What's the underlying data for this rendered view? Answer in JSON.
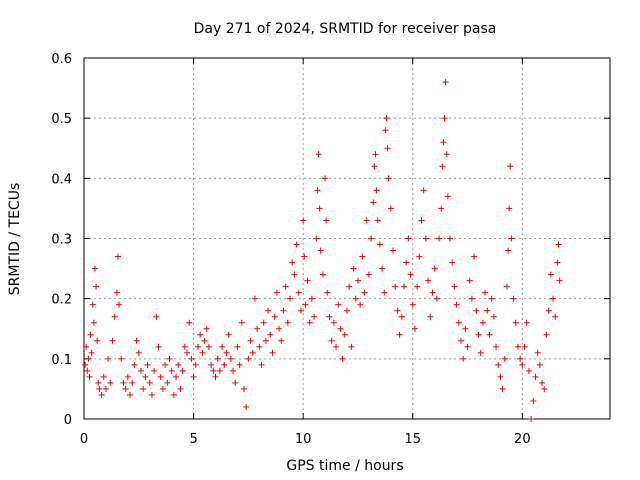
{
  "chart_data": {
    "type": "scatter",
    "title": "Day 271 of 2024, SRMTID for receiver pasa",
    "xlabel": "GPS time / hours",
    "ylabel": "SRMTID / TECUs",
    "xlim": [
      0,
      24
    ],
    "ylim": [
      0,
      0.6
    ],
    "xticks": [
      0,
      5,
      10,
      15,
      20
    ],
    "xtick_labels": [
      "0",
      "5",
      "10",
      "15",
      "20"
    ],
    "yticks": [
      0,
      0.1,
      0.2,
      0.3,
      0.4,
      0.5,
      0.6
    ],
    "ytick_labels": [
      "0",
      "0.1",
      "0.2",
      "0.3",
      "0.4",
      "0.5",
      "0.6"
    ],
    "grid": true,
    "marker": "+",
    "series_color": "#ff0000",
    "series": [
      {
        "name": "pasa",
        "points": [
          [
            0.05,
            0.09
          ],
          [
            0.1,
            0.12
          ],
          [
            0.15,
            0.08
          ],
          [
            0.2,
            0.1
          ],
          [
            0.25,
            0.07
          ],
          [
            0.3,
            0.14
          ],
          [
            0.35,
            0.11
          ],
          [
            0.4,
            0.19
          ],
          [
            0.45,
            0.16
          ],
          [
            0.5,
            0.25
          ],
          [
            0.55,
            0.22
          ],
          [
            0.6,
            0.13
          ],
          [
            0.65,
            0.06
          ],
          [
            0.7,
            0.05
          ],
          [
            0.8,
            0.04
          ],
          [
            0.9,
            0.07
          ],
          [
            1.0,
            0.05
          ],
          [
            1.1,
            0.1
          ],
          [
            1.2,
            0.06
          ],
          [
            1.3,
            0.13
          ],
          [
            1.4,
            0.17
          ],
          [
            1.5,
            0.21
          ],
          [
            1.55,
            0.27
          ],
          [
            1.6,
            0.19
          ],
          [
            1.7,
            0.1
          ],
          [
            1.8,
            0.06
          ],
          [
            1.9,
            0.05
          ],
          [
            2.0,
            0.07
          ],
          [
            2.1,
            0.04
          ],
          [
            2.2,
            0.06
          ],
          [
            2.3,
            0.09
          ],
          [
            2.4,
            0.13
          ],
          [
            2.5,
            0.11
          ],
          [
            2.6,
            0.08
          ],
          [
            2.7,
            0.05
          ],
          [
            2.8,
            0.07
          ],
          [
            2.9,
            0.09
          ],
          [
            3.0,
            0.06
          ],
          [
            3.1,
            0.04
          ],
          [
            3.2,
            0.08
          ],
          [
            3.3,
            0.17
          ],
          [
            3.4,
            0.12
          ],
          [
            3.5,
            0.07
          ],
          [
            3.6,
            0.05
          ],
          [
            3.7,
            0.09
          ],
          [
            3.8,
            0.06
          ],
          [
            3.9,
            0.1
          ],
          [
            4.0,
            0.08
          ],
          [
            4.1,
            0.04
          ],
          [
            4.2,
            0.07
          ],
          [
            4.3,
            0.09
          ],
          [
            4.4,
            0.05
          ],
          [
            4.5,
            0.08
          ],
          [
            4.6,
            0.12
          ],
          [
            4.7,
            0.11
          ],
          [
            4.8,
            0.16
          ],
          [
            4.9,
            0.1
          ],
          [
            5.0,
            0.07
          ],
          [
            5.1,
            0.09
          ],
          [
            5.2,
            0.12
          ],
          [
            5.3,
            0.14
          ],
          [
            5.4,
            0.11
          ],
          [
            5.5,
            0.13
          ],
          [
            5.6,
            0.15
          ],
          [
            5.7,
            0.12
          ],
          [
            5.8,
            0.09
          ],
          [
            5.9,
            0.08
          ],
          [
            6.0,
            0.07
          ],
          [
            6.1,
            0.1
          ],
          [
            6.2,
            0.08
          ],
          [
            6.3,
            0.12
          ],
          [
            6.4,
            0.09
          ],
          [
            6.5,
            0.11
          ],
          [
            6.6,
            0.14
          ],
          [
            6.7,
            0.1
          ],
          [
            6.8,
            0.08
          ],
          [
            6.9,
            0.06
          ],
          [
            7.0,
            0.12
          ],
          [
            7.1,
            0.09
          ],
          [
            7.2,
            0.16
          ],
          [
            7.3,
            0.05
          ],
          [
            7.4,
            0.02
          ],
          [
            7.5,
            0.1
          ],
          [
            7.6,
            0.13
          ],
          [
            7.7,
            0.11
          ],
          [
            7.8,
            0.2
          ],
          [
            7.9,
            0.15
          ],
          [
            8.0,
            0.12
          ],
          [
            8.1,
            0.09
          ],
          [
            8.2,
            0.16
          ],
          [
            8.3,
            0.13
          ],
          [
            8.4,
            0.18
          ],
          [
            8.5,
            0.14
          ],
          [
            8.6,
            0.11
          ],
          [
            8.7,
            0.17
          ],
          [
            8.8,
            0.21
          ],
          [
            8.9,
            0.15
          ],
          [
            9.0,
            0.13
          ],
          [
            9.1,
            0.18
          ],
          [
            9.2,
            0.22
          ],
          [
            9.3,
            0.16
          ],
          [
            9.4,
            0.2
          ],
          [
            9.5,
            0.26
          ],
          [
            9.6,
            0.24
          ],
          [
            9.7,
            0.29
          ],
          [
            9.8,
            0.21
          ],
          [
            9.9,
            0.18
          ],
          [
            10.0,
            0.33
          ],
          [
            10.05,
            0.27
          ],
          [
            10.1,
            0.19
          ],
          [
            10.2,
            0.23
          ],
          [
            10.3,
            0.16
          ],
          [
            10.4,
            0.2
          ],
          [
            10.5,
            0.17
          ],
          [
            10.6,
            0.3
          ],
          [
            10.65,
            0.38
          ],
          [
            10.7,
            0.44
          ],
          [
            10.75,
            0.35
          ],
          [
            10.8,
            0.28
          ],
          [
            10.9,
            0.24
          ],
          [
            11.0,
            0.4
          ],
          [
            11.05,
            0.33
          ],
          [
            11.1,
            0.21
          ],
          [
            11.2,
            0.17
          ],
          [
            11.3,
            0.13
          ],
          [
            11.4,
            0.16
          ],
          [
            11.5,
            0.12
          ],
          [
            11.6,
            0.19
          ],
          [
            11.7,
            0.15
          ],
          [
            11.8,
            0.1
          ],
          [
            11.9,
            0.14
          ],
          [
            12.0,
            0.18
          ],
          [
            12.1,
            0.22
          ],
          [
            12.2,
            0.12
          ],
          [
            12.3,
            0.25
          ],
          [
            12.4,
            0.2
          ],
          [
            12.5,
            0.23
          ],
          [
            12.6,
            0.19
          ],
          [
            12.7,
            0.27
          ],
          [
            12.8,
            0.21
          ],
          [
            12.9,
            0.33
          ],
          [
            13.0,
            0.24
          ],
          [
            13.1,
            0.3
          ],
          [
            13.2,
            0.36
          ],
          [
            13.25,
            0.42
          ],
          [
            13.3,
            0.44
          ],
          [
            13.35,
            0.38
          ],
          [
            13.4,
            0.33
          ],
          [
            13.5,
            0.29
          ],
          [
            13.6,
            0.25
          ],
          [
            13.7,
            0.21
          ],
          [
            13.75,
            0.48
          ],
          [
            13.8,
            0.5
          ],
          [
            13.85,
            0.45
          ],
          [
            13.9,
            0.4
          ],
          [
            14.0,
            0.35
          ],
          [
            14.1,
            0.28
          ],
          [
            14.2,
            0.22
          ],
          [
            14.3,
            0.18
          ],
          [
            14.4,
            0.14
          ],
          [
            14.5,
            0.17
          ],
          [
            14.6,
            0.22
          ],
          [
            14.7,
            0.26
          ],
          [
            14.8,
            0.3
          ],
          [
            14.9,
            0.24
          ],
          [
            15.0,
            0.19
          ],
          [
            15.1,
            0.15
          ],
          [
            15.2,
            0.22
          ],
          [
            15.3,
            0.27
          ],
          [
            15.4,
            0.33
          ],
          [
            15.5,
            0.38
          ],
          [
            15.6,
            0.3
          ],
          [
            15.7,
            0.23
          ],
          [
            15.8,
            0.17
          ],
          [
            15.9,
            0.21
          ],
          [
            16.0,
            0.25
          ],
          [
            16.1,
            0.2
          ],
          [
            16.2,
            0.3
          ],
          [
            16.3,
            0.35
          ],
          [
            16.35,
            0.42
          ],
          [
            16.4,
            0.46
          ],
          [
            16.45,
            0.5
          ],
          [
            16.5,
            0.56
          ],
          [
            16.55,
            0.44
          ],
          [
            16.6,
            0.37
          ],
          [
            16.7,
            0.3
          ],
          [
            16.8,
            0.26
          ],
          [
            16.9,
            0.22
          ],
          [
            17.0,
            0.19
          ],
          [
            17.1,
            0.16
          ],
          [
            17.2,
            0.13
          ],
          [
            17.3,
            0.1
          ],
          [
            17.4,
            0.15
          ],
          [
            17.5,
            0.12
          ],
          [
            17.6,
            0.23
          ],
          [
            17.7,
            0.2
          ],
          [
            17.8,
            0.27
          ],
          [
            17.9,
            0.18
          ],
          [
            18.0,
            0.14
          ],
          [
            18.1,
            0.11
          ],
          [
            18.2,
            0.16
          ],
          [
            18.3,
            0.21
          ],
          [
            18.4,
            0.18
          ],
          [
            18.5,
            0.14
          ],
          [
            18.6,
            0.2
          ],
          [
            18.7,
            0.17
          ],
          [
            18.8,
            0.12
          ],
          [
            18.9,
            0.09
          ],
          [
            19.0,
            0.07
          ],
          [
            19.1,
            0.05
          ],
          [
            19.2,
            0.1
          ],
          [
            19.3,
            0.22
          ],
          [
            19.35,
            0.28
          ],
          [
            19.4,
            0.35
          ],
          [
            19.45,
            0.42
          ],
          [
            19.5,
            0.3
          ],
          [
            19.6,
            0.2
          ],
          [
            19.7,
            0.16
          ],
          [
            19.8,
            0.12
          ],
          [
            19.9,
            0.1
          ],
          [
            20.0,
            0.09
          ],
          [
            20.1,
            0.12
          ],
          [
            20.2,
            0.16
          ],
          [
            20.3,
            0.08
          ],
          [
            20.4,
            0.0
          ],
          [
            20.5,
            0.03
          ],
          [
            20.6,
            0.07
          ],
          [
            20.7,
            0.11
          ],
          [
            20.8,
            0.09
          ],
          [
            20.9,
            0.06
          ],
          [
            21.0,
            0.05
          ],
          [
            21.1,
            0.14
          ],
          [
            21.2,
            0.18
          ],
          [
            21.3,
            0.24
          ],
          [
            21.4,
            0.2
          ],
          [
            21.5,
            0.17
          ],
          [
            21.6,
            0.26
          ],
          [
            21.65,
            0.29
          ],
          [
            21.7,
            0.23
          ]
        ]
      }
    ]
  }
}
